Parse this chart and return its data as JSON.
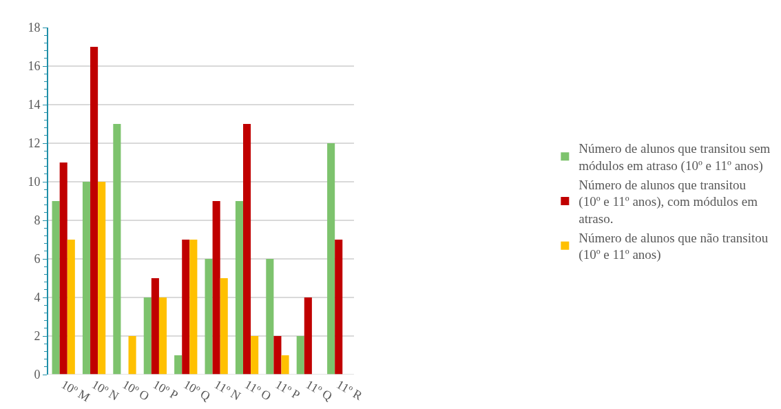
{
  "chart_data": {
    "type": "bar",
    "categories": [
      "10º M",
      "10º N",
      "10º O",
      "10º P",
      "10º Q",
      "11º N",
      "11º O",
      "11º P",
      "11º Q",
      "11º R"
    ],
    "series": [
      {
        "name": "Número de alunos que transitou sem módulos em atraso (10º e 11º anos)",
        "color": "#7dc36d",
        "values": [
          9,
          10,
          13,
          4,
          1,
          6,
          9,
          6,
          2,
          12
        ]
      },
      {
        "name": "Número de alunos que transitou (10º e 11º anos), com módulos em atraso.",
        "color": "#c00000",
        "values": [
          11,
          17,
          null,
          5,
          7,
          9,
          13,
          2,
          4,
          7
        ]
      },
      {
        "name": "Número de alunos que não transitou (10º e 11º anos)",
        "color": "#ffc000",
        "values": [
          7,
          10,
          2,
          4,
          7,
          5,
          2,
          1,
          null,
          null
        ]
      }
    ],
    "ylim": [
      0,
      18
    ],
    "yticks": [
      0,
      2,
      4,
      6,
      8,
      10,
      12,
      14,
      16,
      18
    ],
    "grid": "y",
    "legend": "right"
  }
}
